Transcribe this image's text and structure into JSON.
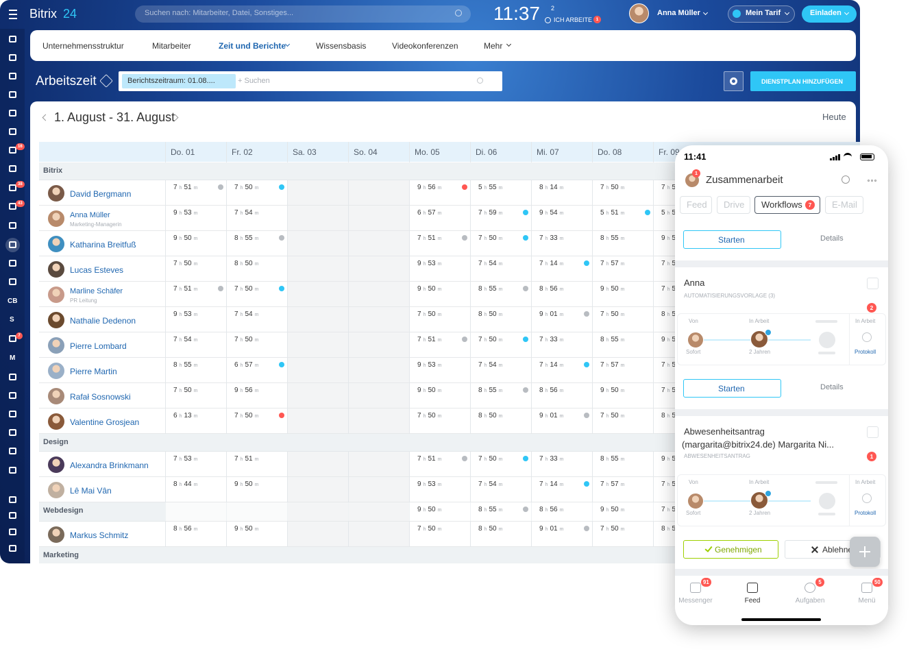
{
  "header": {
    "logo": "Bitrix",
    "logo_num": "24",
    "search_placeholder": "Suchen nach: Mitarbeiter, Datei, Sonstiges...",
    "clock": "11:37",
    "clock_count": "2",
    "work_status": "ICH ARBEITE",
    "work_badge": "1",
    "user": "Anna Müller",
    "plan": "Mein Tarif",
    "invite": "Einladen"
  },
  "sidebar": {
    "badges": [
      "16",
      "38",
      "43",
      "7"
    ],
    "labels": [
      "CB",
      "S",
      "M"
    ]
  },
  "nav": {
    "items": [
      "Unternehmensstruktur",
      "Mitarbeiter",
      "Zeit und Berichte",
      "Wissensbasis",
      "Videokonferenzen",
      "Mehr"
    ],
    "active": 2
  },
  "toolbar": {
    "title": "Arbeitszeit",
    "filter": "Berichtszeitraum: 01.08....",
    "search": "+ Suchen",
    "button": "DIENSTPLAN HINZUFÜGEN"
  },
  "calendar": {
    "range": "1. August - 31. August",
    "today": "Heute",
    "days": [
      "Do. 01",
      "Fr. 02",
      "Sa. 03",
      "So. 04",
      "Mo. 05",
      "Di. 06",
      "Mi. 07",
      "Do. 08",
      "Fr. 09"
    ],
    "weekend_days": [
      2,
      3
    ],
    "unit_h": "h",
    "unit_m": "m",
    "groups": [
      {
        "name": "Bitrix",
        "rows": [
          {
            "name": "David Bergmann",
            "cells": [
              {
                "h": "7",
                "m": "51",
                "status": "grey"
              },
              {
                "h": "7",
                "m": "50",
                "status": "blue"
              },
              null,
              null,
              {
                "h": "9",
                "m": "56",
                "status": "red"
              },
              {
                "h": "5",
                "m": "55"
              },
              {
                "h": "8",
                "m": "14"
              },
              {
                "h": "7",
                "m": "50"
              },
              {
                "h": "7",
                "m": "5"
              }
            ]
          },
          {
            "name": "Anna Müller",
            "role": "Marketing-Managerin",
            "cells": [
              {
                "h": "9",
                "m": "53"
              },
              {
                "h": "7",
                "m": "54"
              },
              null,
              null,
              {
                "h": "6",
                "m": "57"
              },
              {
                "h": "7",
                "m": "59",
                "status": "blue"
              },
              {
                "h": "9",
                "m": "54"
              },
              {
                "h": "5",
                "m": "51",
                "status": "blue"
              },
              {
                "h": "5",
                "m": "5"
              }
            ]
          },
          {
            "name": "Katharina Breitfuß",
            "cells": [
              {
                "h": "9",
                "m": "50"
              },
              {
                "h": "8",
                "m": "55",
                "status": "grey"
              },
              null,
              null,
              {
                "h": "7",
                "m": "51",
                "status": "grey"
              },
              {
                "h": "7",
                "m": "50",
                "status": "blue"
              },
              {
                "h": "7",
                "m": "33"
              },
              {
                "h": "8",
                "m": "55"
              },
              {
                "h": "9",
                "m": "5"
              }
            ]
          },
          {
            "name": "Lucas Esteves",
            "cells": [
              {
                "h": "7",
                "m": "50"
              },
              {
                "h": "8",
                "m": "50"
              },
              null,
              null,
              {
                "h": "9",
                "m": "53"
              },
              {
                "h": "7",
                "m": "54"
              },
              {
                "h": "7",
                "m": "14",
                "status": "blue"
              },
              {
                "h": "7",
                "m": "57"
              },
              {
                "h": "7",
                "m": "5"
              }
            ]
          },
          {
            "name": "Marline Schäfer",
            "role": "PR Leitung",
            "cells": [
              {
                "h": "7",
                "m": "51",
                "status": "grey"
              },
              {
                "h": "7",
                "m": "50",
                "status": "blue"
              },
              null,
              null,
              {
                "h": "9",
                "m": "50"
              },
              {
                "h": "8",
                "m": "55",
                "status": "grey"
              },
              {
                "h": "8",
                "m": "56"
              },
              {
                "h": "9",
                "m": "50"
              },
              {
                "h": "7",
                "m": "5"
              }
            ]
          },
          {
            "name": "Nathalie Dedenon",
            "cells": [
              {
                "h": "9",
                "m": "53"
              },
              {
                "h": "7",
                "m": "54"
              },
              null,
              null,
              {
                "h": "7",
                "m": "50"
              },
              {
                "h": "8",
                "m": "50"
              },
              {
                "h": "9",
                "m": "01",
                "status": "grey"
              },
              {
                "h": "7",
                "m": "50"
              },
              {
                "h": "8",
                "m": "5"
              }
            ]
          },
          {
            "name": "Pierre Lombard",
            "cells": [
              {
                "h": "7",
                "m": "54"
              },
              {
                "h": "7",
                "m": "50"
              },
              null,
              null,
              {
                "h": "7",
                "m": "51",
                "status": "grey"
              },
              {
                "h": "7",
                "m": "50",
                "status": "blue"
              },
              {
                "h": "7",
                "m": "33"
              },
              {
                "h": "8",
                "m": "55"
              },
              {
                "h": "9",
                "m": "5"
              }
            ]
          },
          {
            "name": "Pierre Martin",
            "cells": [
              {
                "h": "8",
                "m": "55"
              },
              {
                "h": "6",
                "m": "57",
                "status": "blue"
              },
              null,
              null,
              {
                "h": "9",
                "m": "53"
              },
              {
                "h": "7",
                "m": "54"
              },
              {
                "h": "7",
                "m": "14",
                "status": "blue"
              },
              {
                "h": "7",
                "m": "57"
              },
              {
                "h": "7",
                "m": "5"
              }
            ]
          },
          {
            "name": "Rafał Sosnowski",
            "cells": [
              {
                "h": "7",
                "m": "50"
              },
              {
                "h": "9",
                "m": "56"
              },
              null,
              null,
              {
                "h": "9",
                "m": "50"
              },
              {
                "h": "8",
                "m": "55",
                "status": "grey"
              },
              {
                "h": "8",
                "m": "56"
              },
              {
                "h": "9",
                "m": "50"
              },
              {
                "h": "7",
                "m": "5"
              }
            ]
          },
          {
            "name": "Valentine Grosjean",
            "cells": [
              {
                "h": "6",
                "m": "13"
              },
              {
                "h": "7",
                "m": "50",
                "status": "red"
              },
              null,
              null,
              {
                "h": "7",
                "m": "50"
              },
              {
                "h": "8",
                "m": "50"
              },
              {
                "h": "9",
                "m": "01",
                "status": "grey"
              },
              {
                "h": "7",
                "m": "50"
              },
              {
                "h": "8",
                "m": "5"
              }
            ]
          }
        ]
      },
      {
        "name": "Design",
        "rows": [
          {
            "name": "Alexandra Brinkmann",
            "cells": [
              {
                "h": "7",
                "m": "53"
              },
              {
                "h": "7",
                "m": "51"
              },
              null,
              null,
              {
                "h": "7",
                "m": "51",
                "status": "grey"
              },
              {
                "h": "7",
                "m": "50",
                "status": "blue"
              },
              {
                "h": "7",
                "m": "33"
              },
              {
                "h": "8",
                "m": "55"
              },
              {
                "h": "9",
                "m": "5"
              }
            ]
          },
          {
            "name": "Lê Mai Vân",
            "cells": [
              {
                "h": "8",
                "m": "44"
              },
              {
                "h": "9",
                "m": "50"
              },
              null,
              null,
              {
                "h": "9",
                "m": "53"
              },
              {
                "h": "7",
                "m": "54"
              },
              {
                "h": "7",
                "m": "14",
                "status": "blue"
              },
              {
                "h": "7",
                "m": "57"
              },
              {
                "h": "7",
                "m": "5"
              }
            ]
          }
        ]
      },
      {
        "name": "Webdesign",
        "cells": [
          null,
          null,
          null,
          null,
          {
            "h": "9",
            "m": "50"
          },
          {
            "h": "8",
            "m": "55",
            "status": "grey"
          },
          {
            "h": "8",
            "m": "56"
          },
          {
            "h": "9",
            "m": "50"
          },
          {
            "h": "7",
            "m": "5"
          }
        ],
        "rows": [
          {
            "name": "Markus Schmitz",
            "cells": [
              {
                "h": "8",
                "m": "56"
              },
              {
                "h": "9",
                "m": "50"
              },
              null,
              null,
              {
                "h": "7",
                "m": "50"
              },
              {
                "h": "8",
                "m": "50"
              },
              {
                "h": "9",
                "m": "01",
                "status": "grey"
              },
              {
                "h": "7",
                "m": "50"
              },
              {
                "h": "8",
                "m": "5"
              }
            ]
          }
        ]
      },
      {
        "name": "Marketing",
        "rows": []
      }
    ]
  },
  "phone": {
    "time": "11:41",
    "badge": "1",
    "title": "Zusammenarbeit",
    "tabs": [
      {
        "label": "Feed"
      },
      {
        "label": "Drive"
      },
      {
        "label": "Workflows",
        "badge": "7"
      },
      {
        "label": "E-Mail"
      }
    ],
    "top_actions": [
      "Starten",
      "Details"
    ],
    "cards": [
      {
        "title": "Anna",
        "subtitle": "AUTOMATISIERUNGSVORLAGE (3)",
        "badge": "2",
        "from": "Von",
        "status": "In Arbeit",
        "status2": "In Arbeit",
        "when": "Sofort",
        "duration": "2 Jahren",
        "log": "Protokoll",
        "actions": [
          "Starten",
          "Details"
        ]
      },
      {
        "title": "Abwesenheitsantrag",
        "title2": "(margarita@bitrix24.de) Margarita Ni...",
        "subtitle": "ABWESENHEITSANTRAG",
        "badge": "1",
        "from": "Von",
        "status": "In Arbeit",
        "status2": "In Arbeit",
        "when": "Sofort",
        "duration": "2 Jahren",
        "log": "Protokoll",
        "actions": [
          "Genehmigen",
          "Ablehne"
        ]
      }
    ],
    "bottom": [
      {
        "label": "Messenger",
        "badge": "91"
      },
      {
        "label": "Feed"
      },
      {
        "label": "Aufgaben",
        "badge": "5"
      },
      {
        "label": "Menü",
        "badge": "50"
      }
    ]
  }
}
